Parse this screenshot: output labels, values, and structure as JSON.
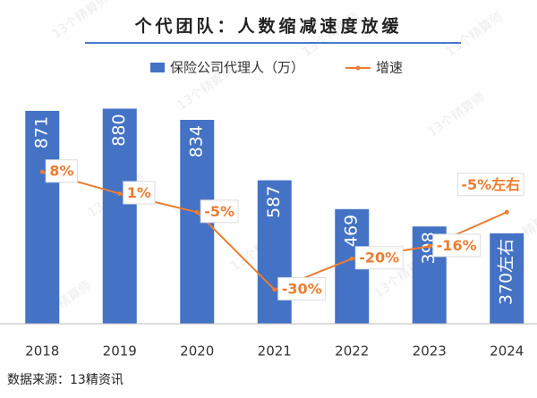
{
  "chart_data": {
    "type": "bar-line",
    "title": "个代团队：人数缩减速度放缓",
    "watermark": "13个精算师",
    "source": "数据来源：13精资讯",
    "categories": [
      "2018",
      "2019",
      "2020",
      "2021",
      "2022",
      "2023",
      "2024"
    ],
    "series": [
      {
        "name": "保险公司代理人（万）",
        "type": "bar",
        "color": "#4472c4",
        "values": [
          871,
          880,
          834,
          587,
          469,
          398,
          370
        ],
        "value_labels": [
          "871",
          "880",
          "834",
          "587",
          "469",
          "398",
          "370左右"
        ]
      },
      {
        "name": "增速",
        "type": "line",
        "axis": "y2",
        "color": "#ed7d31",
        "values": [
          8,
          1,
          -5,
          -30,
          -20,
          -16,
          -5
        ],
        "value_labels": [
          "8%",
          "1%",
          "-5%",
          "-30%",
          "-20%",
          "-16%",
          "-5%左右"
        ]
      }
    ],
    "ylim": [
      0,
      900
    ],
    "y2lim": [
      -41,
      30
    ]
  }
}
